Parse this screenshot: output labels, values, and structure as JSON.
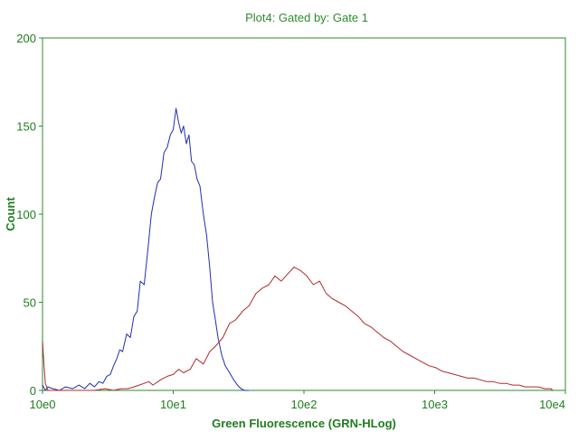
{
  "chart_data": {
    "type": "line",
    "title": "Plot4:  Gated by: Gate 1",
    "xlabel": "Green Fluorescence (GRN-HLog)",
    "ylabel": "Count",
    "xscale": "log",
    "xlim": [
      1,
      10000
    ],
    "ylim": [
      0,
      200
    ],
    "xticks": [
      1,
      10,
      100,
      1000,
      10000
    ],
    "xtick_labels": [
      "10e0",
      "10e1",
      "10e2",
      "10e3",
      "10e4"
    ],
    "yticks": [
      0,
      50,
      100,
      150,
      200
    ],
    "ytick_labels": [
      "0",
      "50",
      "100",
      "150",
      "200"
    ],
    "grid": false,
    "axis_color": "#2e8b2e",
    "series": [
      {
        "color": "#1f2fb4",
        "x": [
          1.0,
          1.05,
          1.1,
          1.2,
          1.35,
          1.5,
          1.7,
          1.9,
          2.1,
          2.3,
          2.5,
          2.7,
          2.9,
          3.1,
          3.3,
          3.5,
          3.7,
          3.9,
          4.1,
          4.4,
          4.7,
          5.0,
          5.3,
          5.6,
          6.0,
          6.4,
          6.8,
          7.2,
          7.6,
          8.0,
          8.5,
          9.0,
          9.5,
          10.0,
          10.5,
          11.0,
          11.5,
          12.0,
          12.6,
          13.2,
          13.8,
          14.5,
          15.2,
          16.0,
          17.0,
          18.0,
          19.0,
          20.0,
          21.0,
          22.0,
          23.5,
          25.0,
          27.0,
          29.0,
          31.0,
          33.0,
          35.0,
          38.0
        ],
        "values": [
          3,
          0,
          2,
          1,
          0,
          2,
          1,
          3,
          1,
          4,
          2,
          5,
          4,
          8,
          9,
          14,
          18,
          23,
          22,
          32,
          30,
          42,
          45,
          62,
          60,
          80,
          100,
          110,
          118,
          120,
          135,
          138,
          145,
          148,
          160,
          152,
          146,
          150,
          140,
          145,
          130,
          128,
          120,
          116,
          100,
          88,
          70,
          50,
          40,
          30,
          20,
          14,
          10,
          6,
          3,
          1,
          0,
          0
        ]
      },
      {
        "color": "#b02a2a",
        "x": [
          1.0,
          1.02,
          1.05,
          1.1,
          1.3,
          1.6,
          2.0,
          2.5,
          3.0,
          3.5,
          4.0,
          4.5,
          5.0,
          5.5,
          6.0,
          6.5,
          7.0,
          8.0,
          9.0,
          10.0,
          11.0,
          12.0,
          13.5,
          15.0,
          17.0,
          19.0,
          21.0,
          24.0,
          27.0,
          30.0,
          34.0,
          38.0,
          43.0,
          48.0,
          54.0,
          60.0,
          67.0,
          75.0,
          84.0,
          94.0,
          105.0,
          118.0,
          132.0,
          148.0,
          165.0,
          185.0,
          207.0,
          232.0,
          260.0,
          290.0,
          325.0,
          364.0,
          408.0,
          457.0,
          512.0,
          574.0,
          643.0,
          720.0,
          806.0,
          903.0,
          1011.0,
          1132.0,
          1268.0,
          1420.0,
          1590.0,
          1780.0,
          1995.0,
          2235.0,
          2500.0,
          2800.0,
          3140.0,
          3520.0,
          3940.0,
          4410.0,
          4940.0,
          5530.0,
          6190.0,
          6930.0,
          7760.0,
          8000.0
        ],
        "values": [
          28,
          18,
          4,
          0,
          0,
          0,
          0,
          0,
          1,
          0,
          1,
          1,
          2,
          3,
          4,
          5,
          3,
          6,
          8,
          9,
          12,
          10,
          12,
          18,
          15,
          22,
          25,
          30,
          38,
          40,
          45,
          48,
          55,
          58,
          60,
          65,
          62,
          66,
          70,
          68,
          65,
          60,
          62,
          55,
          52,
          50,
          48,
          45,
          42,
          38,
          36,
          33,
          30,
          28,
          25,
          22,
          20,
          18,
          16,
          14,
          13,
          11,
          10,
          9,
          8,
          7,
          7,
          6,
          5,
          5,
          4,
          4,
          3,
          3,
          2,
          2,
          2,
          1,
          1,
          0
        ]
      }
    ]
  }
}
